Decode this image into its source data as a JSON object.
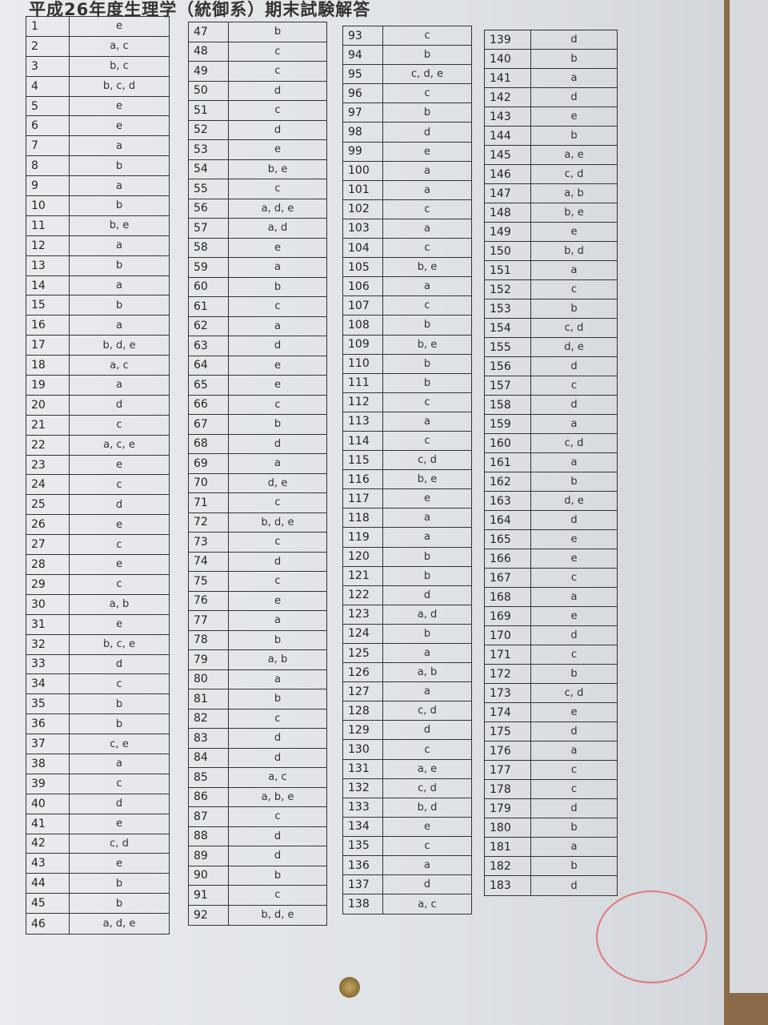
{
  "title": "平成26年度生理学（統御系）期末試験解答",
  "columns": [
    {
      "rows": [
        [
          1,
          "e"
        ],
        [
          2,
          "a, c"
        ],
        [
          3,
          "b, c"
        ],
        [
          4,
          "b, c, d"
        ],
        [
          5,
          "e"
        ],
        [
          6,
          "e"
        ],
        [
          7,
          "a"
        ],
        [
          8,
          "b"
        ],
        [
          9,
          "a"
        ],
        [
          10,
          "b"
        ],
        [
          11,
          "b, e"
        ],
        [
          12,
          "a"
        ],
        [
          13,
          "b"
        ],
        [
          14,
          "a"
        ],
        [
          15,
          "b"
        ],
        [
          16,
          "a"
        ],
        [
          17,
          "b, d, e"
        ],
        [
          18,
          "a, c"
        ],
        [
          19,
          "a"
        ],
        [
          20,
          "d"
        ],
        [
          21,
          "c"
        ],
        [
          22,
          "a, c, e"
        ],
        [
          23,
          "e"
        ],
        [
          24,
          "c"
        ],
        [
          25,
          "d"
        ],
        [
          26,
          "e"
        ],
        [
          27,
          "c"
        ],
        [
          28,
          "e"
        ],
        [
          29,
          "c"
        ],
        [
          30,
          "a, b"
        ],
        [
          31,
          "e"
        ],
        [
          32,
          "b, c, e"
        ],
        [
          33,
          "d"
        ],
        [
          34,
          "c"
        ],
        [
          35,
          "b"
        ],
        [
          36,
          "b"
        ],
        [
          37,
          "c, e"
        ],
        [
          38,
          "a"
        ],
        [
          39,
          "c"
        ],
        [
          40,
          "d"
        ],
        [
          41,
          "e"
        ],
        [
          42,
          "c, d"
        ],
        [
          43,
          "e"
        ],
        [
          44,
          "b"
        ],
        [
          45,
          "b"
        ],
        [
          46,
          "a, d, e"
        ]
      ]
    },
    {
      "rows": [
        [
          47,
          "b"
        ],
        [
          48,
          "c"
        ],
        [
          49,
          "c"
        ],
        [
          50,
          "d"
        ],
        [
          51,
          "c"
        ],
        [
          52,
          "d"
        ],
        [
          53,
          "e"
        ],
        [
          54,
          "b, e"
        ],
        [
          55,
          "c"
        ],
        [
          56,
          "a, d, e"
        ],
        [
          57,
          "a, d"
        ],
        [
          58,
          "e"
        ],
        [
          59,
          "a"
        ],
        [
          60,
          "b"
        ],
        [
          61,
          "c"
        ],
        [
          62,
          "a"
        ],
        [
          63,
          "d"
        ],
        [
          64,
          "e"
        ],
        [
          65,
          "e"
        ],
        [
          66,
          "c"
        ],
        [
          67,
          "b"
        ],
        [
          68,
          "d"
        ],
        [
          69,
          "a"
        ],
        [
          70,
          "d, e"
        ],
        [
          71,
          "c"
        ],
        [
          72,
          "b, d, e"
        ],
        [
          73,
          "c"
        ],
        [
          74,
          "d"
        ],
        [
          75,
          "c"
        ],
        [
          76,
          "e"
        ],
        [
          77,
          "a"
        ],
        [
          78,
          "b"
        ],
        [
          79,
          "a, b"
        ],
        [
          80,
          "a"
        ],
        [
          81,
          "b"
        ],
        [
          82,
          "c"
        ],
        [
          83,
          "d"
        ],
        [
          84,
          "d"
        ],
        [
          85,
          "a, c"
        ],
        [
          86,
          "a, b, e"
        ],
        [
          87,
          "c"
        ],
        [
          88,
          "d"
        ],
        [
          89,
          "d"
        ],
        [
          90,
          "b"
        ],
        [
          91,
          "c"
        ],
        [
          92,
          "b, d, e"
        ]
      ]
    },
    {
      "rows": [
        [
          93,
          "c"
        ],
        [
          94,
          "b"
        ],
        [
          95,
          "c, d, e"
        ],
        [
          96,
          "c"
        ],
        [
          97,
          "b"
        ],
        [
          98,
          "d"
        ],
        [
          99,
          "e"
        ],
        [
          100,
          "a"
        ],
        [
          101,
          "a"
        ],
        [
          102,
          "c"
        ],
        [
          103,
          "a"
        ],
        [
          104,
          "c"
        ],
        [
          105,
          "b, e"
        ],
        [
          106,
          "a"
        ],
        [
          107,
          "c"
        ],
        [
          108,
          "b"
        ],
        [
          109,
          "b, e"
        ],
        [
          110,
          "b"
        ],
        [
          111,
          "b"
        ],
        [
          112,
          "c"
        ],
        [
          113,
          "a"
        ],
        [
          114,
          "c"
        ],
        [
          115,
          "c, d"
        ],
        [
          116,
          "b, e"
        ],
        [
          117,
          "e"
        ],
        [
          118,
          "a"
        ],
        [
          119,
          "a"
        ],
        [
          120,
          "b"
        ],
        [
          121,
          "b"
        ],
        [
          122,
          "d"
        ],
        [
          123,
          "a, d"
        ],
        [
          124,
          "b"
        ],
        [
          125,
          "a"
        ],
        [
          126,
          "a, b"
        ],
        [
          127,
          "a"
        ],
        [
          128,
          "c, d"
        ],
        [
          129,
          "d"
        ],
        [
          130,
          "c"
        ],
        [
          131,
          "a, e"
        ],
        [
          132,
          "c, d"
        ],
        [
          133,
          "b, d"
        ],
        [
          134,
          "e"
        ],
        [
          135,
          "c"
        ],
        [
          136,
          "a"
        ],
        [
          137,
          "d"
        ],
        [
          138,
          "a, c"
        ]
      ]
    },
    {
      "rows": [
        [
          139,
          "d"
        ],
        [
          140,
          "b"
        ],
        [
          141,
          "a"
        ],
        [
          142,
          "d"
        ],
        [
          143,
          "e"
        ],
        [
          144,
          "b"
        ],
        [
          145,
          "a, e"
        ],
        [
          146,
          "c, d"
        ],
        [
          147,
          "a, b"
        ],
        [
          148,
          "b, e"
        ],
        [
          149,
          "e"
        ],
        [
          150,
          "b, d"
        ],
        [
          151,
          "a"
        ],
        [
          152,
          "c"
        ],
        [
          153,
          "b"
        ],
        [
          154,
          "c, d"
        ],
        [
          155,
          "d, e"
        ],
        [
          156,
          "d"
        ],
        [
          157,
          "c"
        ],
        [
          158,
          "d"
        ],
        [
          159,
          "a"
        ],
        [
          160,
          "c, d"
        ],
        [
          161,
          "a"
        ],
        [
          162,
          "b"
        ],
        [
          163,
          "d, e"
        ],
        [
          164,
          "d"
        ],
        [
          165,
          "e"
        ],
        [
          166,
          "e"
        ],
        [
          167,
          "c"
        ],
        [
          168,
          "a"
        ],
        [
          169,
          "e"
        ],
        [
          170,
          "d"
        ],
        [
          171,
          "c"
        ],
        [
          172,
          "b"
        ],
        [
          173,
          "c, d"
        ],
        [
          174,
          "e"
        ],
        [
          175,
          "d"
        ],
        [
          176,
          "a"
        ],
        [
          177,
          "c"
        ],
        [
          178,
          "c"
        ],
        [
          179,
          "d"
        ],
        [
          180,
          "b"
        ],
        [
          181,
          "a"
        ],
        [
          182,
          "b"
        ],
        [
          183,
          "d"
        ]
      ]
    }
  ]
}
